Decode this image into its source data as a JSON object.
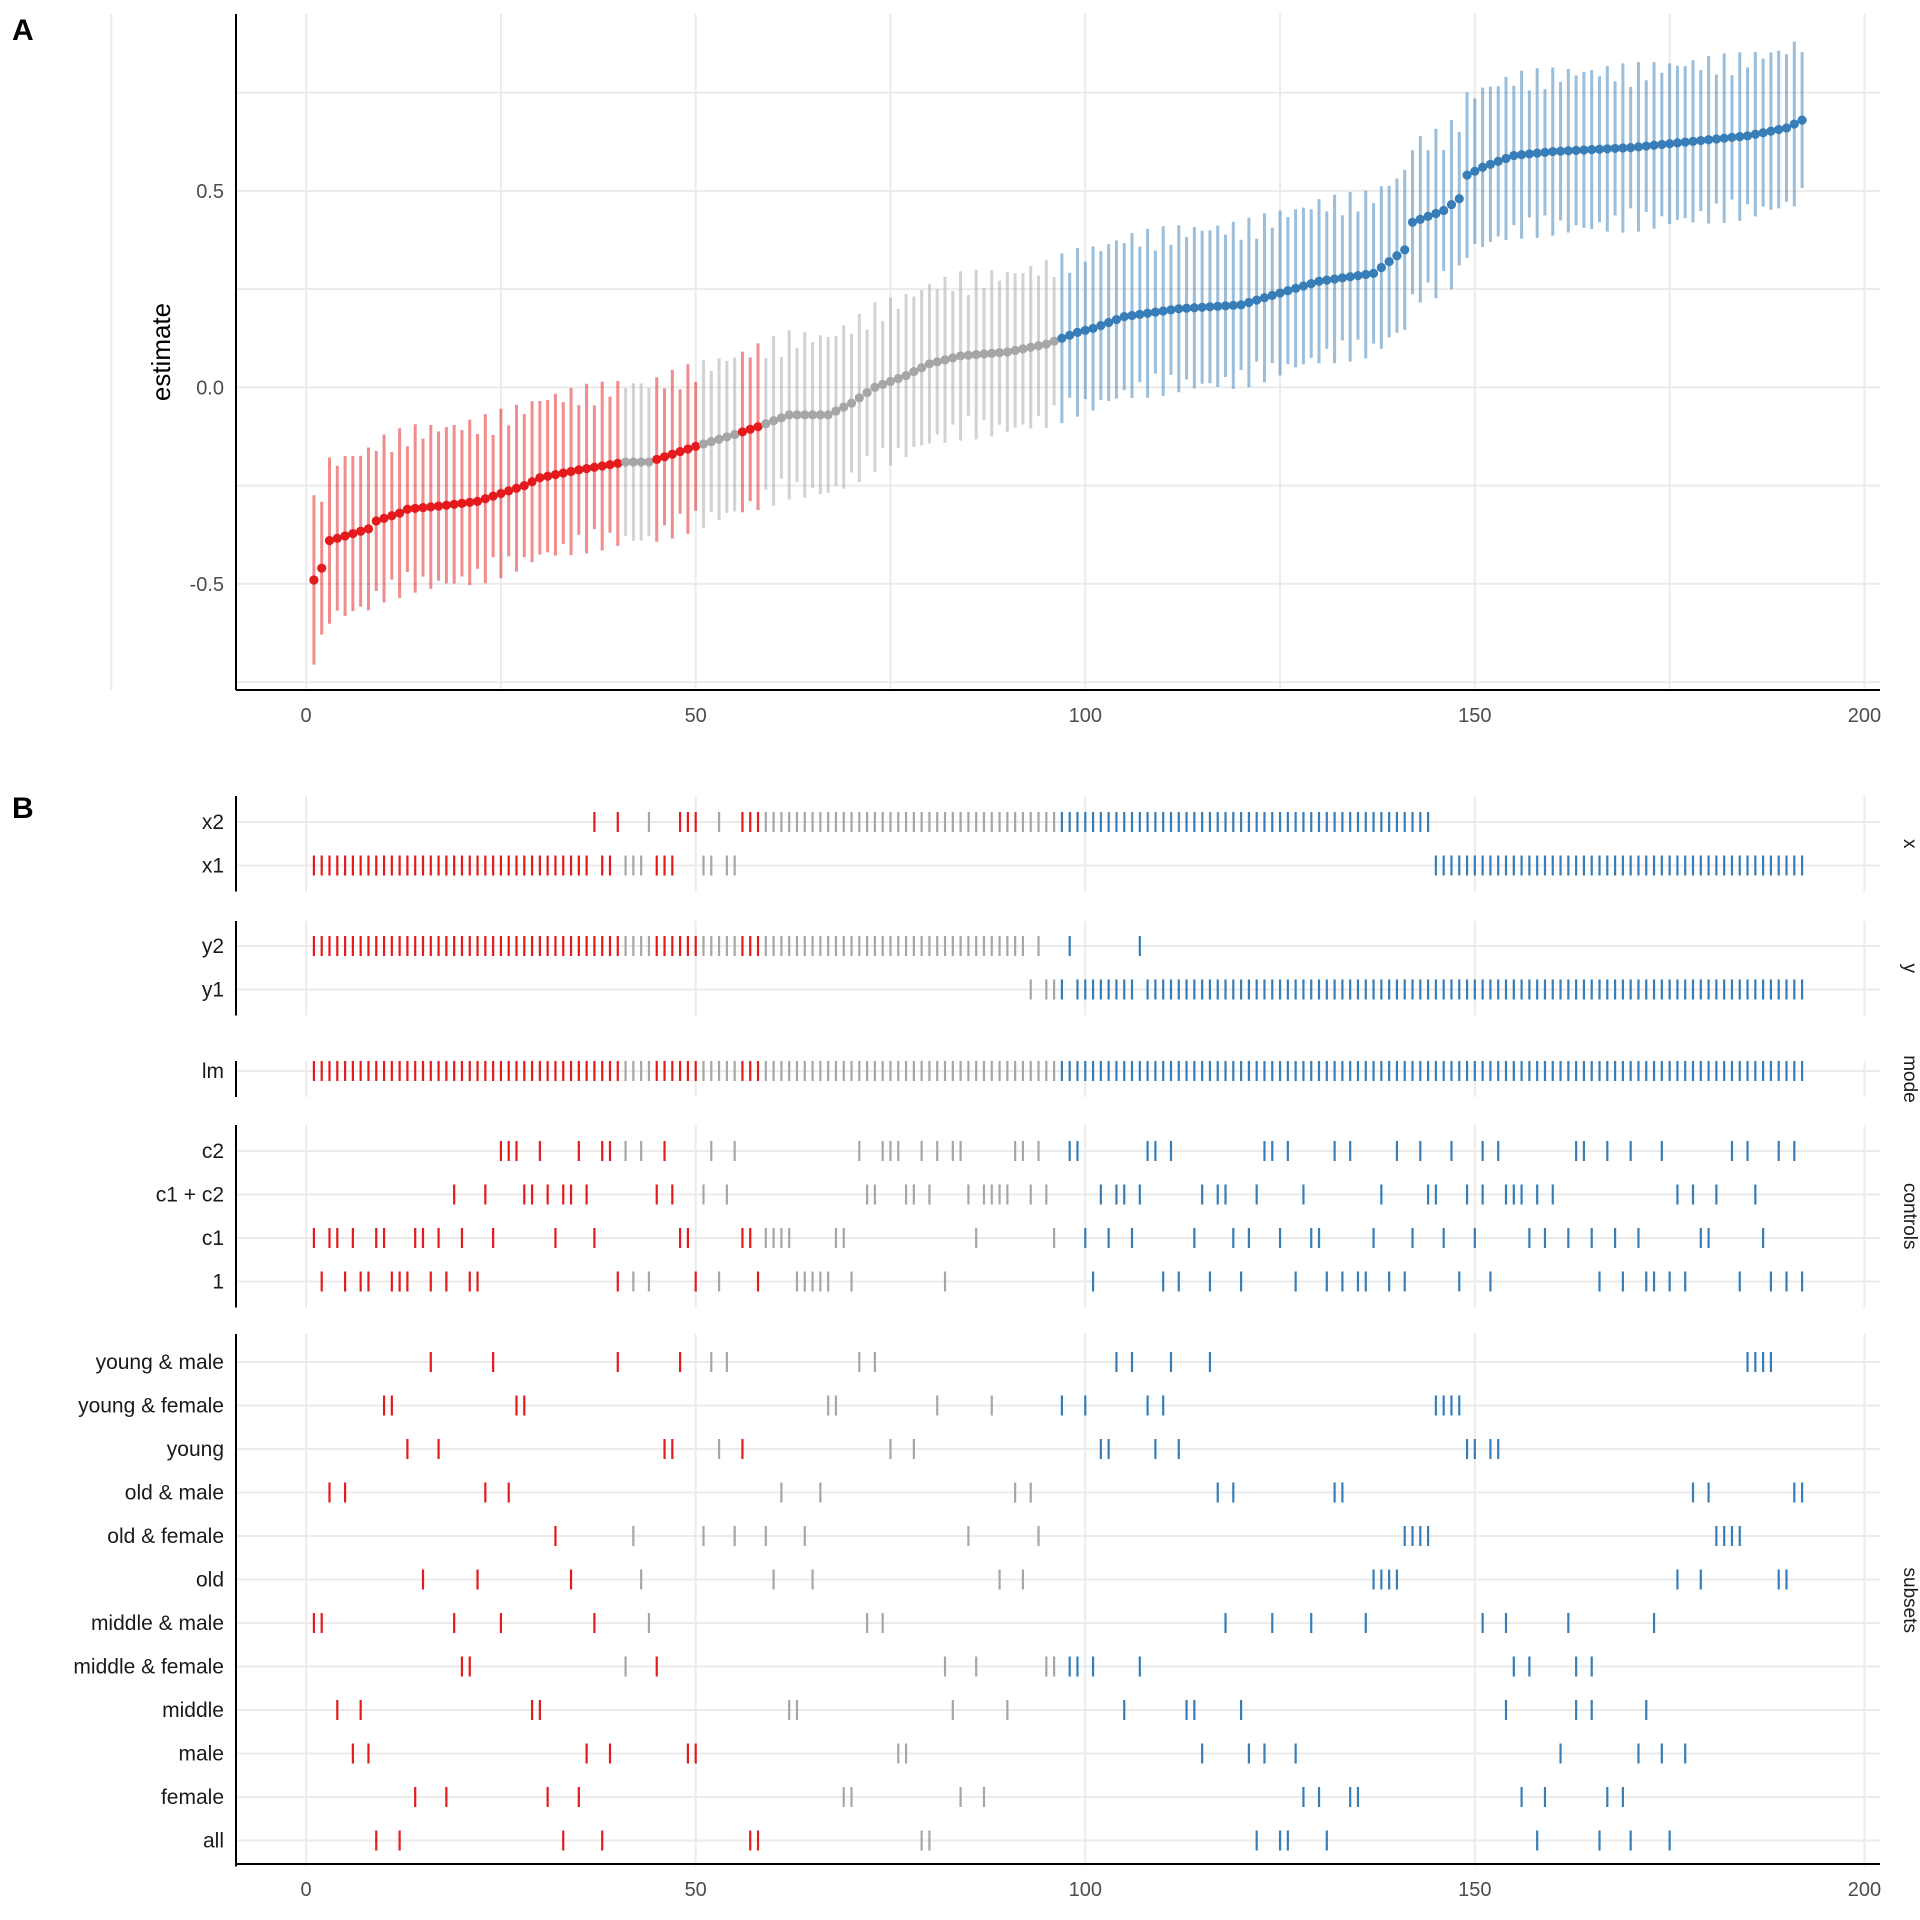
{
  "panels": {
    "a_label": "A",
    "b_label": "B"
  },
  "colors": {
    "negative": "#e41a1c",
    "neutral": "#a6a6a6",
    "positive": "#377eb8",
    "grid": "#ebebeb",
    "axis": "#000000"
  },
  "chart_data": [
    {
      "type": "scatter",
      "title": "",
      "xlabel": "",
      "ylabel": "estimate",
      "xlim": [
        -9,
        202
      ],
      "ylim": [
        -0.77,
        0.95
      ],
      "xticks": [
        0,
        50,
        100,
        150,
        200
      ],
      "xtick_labels": [
        "0",
        "50",
        "100",
        "150",
        "200"
      ],
      "yticks": [
        -0.5,
        0.0,
        0.5
      ],
      "ytick_labels": [
        "-0.5",
        "0.0",
        "0.5"
      ],
      "grid": true,
      "categories_by_color": [
        "negative",
        "neutral",
        "positive"
      ],
      "segments": [
        {
          "from": 1,
          "to": 40,
          "color": "negative"
        },
        {
          "from": 41,
          "to": 44,
          "color": "neutral"
        },
        {
          "from": 45,
          "to": 50,
          "color": "negative"
        },
        {
          "from": 51,
          "to": 55,
          "color": "neutral"
        },
        {
          "from": 56,
          "to": 58,
          "color": "negative"
        },
        {
          "from": 59,
          "to": 96,
          "color": "neutral"
        },
        {
          "from": 97,
          "to": 192,
          "color": "positive"
        }
      ],
      "estimate_keypoints": [
        [
          1,
          -0.49
        ],
        [
          2,
          -0.46
        ],
        [
          3,
          -0.39
        ],
        [
          8,
          -0.36
        ],
        [
          9,
          -0.34
        ],
        [
          12,
          -0.32
        ],
        [
          13,
          -0.31
        ],
        [
          18,
          -0.3
        ],
        [
          22,
          -0.29
        ],
        [
          28,
          -0.25
        ],
        [
          30,
          -0.23
        ],
        [
          35,
          -0.21
        ],
        [
          38,
          -0.2
        ],
        [
          41,
          -0.19
        ],
        [
          44,
          -0.19
        ],
        [
          50,
          -0.15
        ],
        [
          55,
          -0.12
        ],
        [
          58,
          -0.1
        ],
        [
          62,
          -0.07
        ],
        [
          67,
          -0.07
        ],
        [
          70,
          -0.04
        ],
        [
          73,
          0.0
        ],
        [
          77,
          0.03
        ],
        [
          80,
          0.06
        ],
        [
          84,
          0.08
        ],
        [
          90,
          0.09
        ],
        [
          95,
          0.11
        ],
        [
          99,
          0.14
        ],
        [
          101,
          0.15
        ],
        [
          105,
          0.18
        ],
        [
          112,
          0.2
        ],
        [
          120,
          0.21
        ],
        [
          125,
          0.24
        ],
        [
          130,
          0.27
        ],
        [
          137,
          0.29
        ],
        [
          141,
          0.35
        ],
        [
          142,
          0.42
        ],
        [
          146,
          0.45
        ],
        [
          148,
          0.48
        ],
        [
          149,
          0.54
        ],
        [
          151,
          0.56
        ],
        [
          155,
          0.59
        ],
        [
          160,
          0.6
        ],
        [
          170,
          0.61
        ],
        [
          175,
          0.62
        ],
        [
          180,
          0.63
        ],
        [
          185,
          0.64
        ],
        [
          190,
          0.66
        ],
        [
          192,
          0.68
        ]
      ],
      "ci_halfwidth": 0.18
    },
    {
      "type": "table",
      "title": "",
      "xlim": [
        -9,
        202
      ],
      "xticks": [
        0,
        50,
        100,
        150,
        200
      ],
      "xtick_labels": [
        "0",
        "50",
        "100",
        "150",
        "200"
      ],
      "groups": [
        {
          "strip": "x",
          "rows": [
            {
              "label": "x2",
              "ticks": [
                37,
                40,
                44,
                48,
                49,
                50,
                53,
                56,
                57,
                58,
                "59-144"
              ]
            },
            {
              "label": "x1",
              "ticks": [
                "1-36",
                38,
                39,
                41,
                42,
                43,
                45,
                46,
                47,
                51,
                52,
                54,
                55,
                "145-192"
              ]
            }
          ]
        },
        {
          "strip": "y",
          "rows": [
            {
              "label": "y2",
              "ticks": [
                "1-92",
                94,
                98,
                107
              ]
            },
            {
              "label": "y1",
              "ticks": [
                93,
                95,
                96,
                97,
                "99-106",
                "108-192"
              ]
            }
          ]
        },
        {
          "strip": "mode",
          "rows": [
            {
              "label": "lm",
              "ticks": [
                "1-192"
              ]
            }
          ]
        },
        {
          "strip": "controls",
          "rows": [
            {
              "label": "c2",
              "ticks": [
                25,
                26,
                27,
                30,
                35,
                38,
                39,
                41,
                43,
                46,
                52,
                55,
                71,
                74,
                75,
                76,
                79,
                81,
                83,
                84,
                91,
                92,
                94,
                98,
                99,
                108,
                109,
                111,
                123,
                124,
                126,
                132,
                134,
                140,
                143,
                147,
                151,
                153,
                163,
                164,
                167,
                170,
                174,
                183,
                185,
                189,
                191
              ]
            },
            {
              "label": "c1 + c2",
              "ticks": [
                19,
                23,
                28,
                29,
                31,
                33,
                34,
                36,
                45,
                47,
                51,
                54,
                72,
                73,
                77,
                78,
                80,
                85,
                87,
                88,
                89,
                90,
                93,
                95,
                102,
                104,
                105,
                107,
                115,
                117,
                118,
                122,
                128,
                138,
                144,
                145,
                149,
                151,
                154,
                155,
                156,
                158,
                160,
                176,
                178,
                181,
                186
              ]
            },
            {
              "label": "c1",
              "ticks": [
                1,
                3,
                4,
                6,
                9,
                10,
                14,
                15,
                17,
                20,
                24,
                32,
                37,
                48,
                49,
                56,
                57,
                59,
                60,
                61,
                62,
                68,
                69,
                86,
                96,
                100,
                103,
                106,
                114,
                119,
                121,
                125,
                129,
                130,
                137,
                142,
                146,
                150,
                157,
                159,
                162,
                165,
                168,
                171,
                179,
                180,
                187
              ]
            },
            {
              "label": "1",
              "ticks": [
                2,
                5,
                7,
                8,
                11,
                12,
                13,
                16,
                18,
                21,
                22,
                40,
                42,
                44,
                50,
                53,
                58,
                63,
                64,
                65,
                66,
                67,
                70,
                82,
                101,
                110,
                112,
                116,
                120,
                127,
                131,
                133,
                135,
                136,
                139,
                141,
                148,
                152,
                166,
                169,
                172,
                173,
                175,
                177,
                184,
                188,
                190,
                192
              ]
            }
          ]
        },
        {
          "strip": "subsets",
          "rows": [
            {
              "label": "young & male",
              "ticks": [
                16,
                24,
                40,
                48,
                52,
                54,
                71,
                73,
                104,
                106,
                111,
                116,
                185,
                186,
                187,
                188
              ]
            },
            {
              "label": "young & female",
              "ticks": [
                10,
                11,
                27,
                28,
                67,
                68,
                81,
                88,
                97,
                100,
                108,
                110,
                145,
                146,
                147,
                148
              ]
            },
            {
              "label": "young",
              "ticks": [
                13,
                17,
                46,
                47,
                53,
                56,
                75,
                78,
                102,
                103,
                109,
                112,
                149,
                150,
                152,
                153
              ]
            },
            {
              "label": "old & male",
              "ticks": [
                3,
                5,
                23,
                26,
                61,
                66,
                91,
                93,
                117,
                119,
                132,
                133,
                178,
                180,
                191,
                192
              ]
            },
            {
              "label": "old & female",
              "ticks": [
                32,
                42,
                51,
                55,
                59,
                64,
                85,
                94,
                141,
                142,
                143,
                144,
                181,
                182,
                183,
                184
              ]
            },
            {
              "label": "old",
              "ticks": [
                15,
                22,
                34,
                43,
                60,
                65,
                89,
                92,
                137,
                138,
                139,
                140,
                176,
                179,
                189,
                190
              ]
            },
            {
              "label": "middle & male",
              "ticks": [
                1,
                2,
                19,
                25,
                37,
                44,
                72,
                74,
                118,
                124,
                129,
                136,
                151,
                154,
                162,
                173
              ]
            },
            {
              "label": "middle & female",
              "ticks": [
                20,
                21,
                41,
                45,
                82,
                86,
                95,
                96,
                98,
                99,
                101,
                107,
                155,
                157,
                163,
                165
              ]
            },
            {
              "label": "middle",
              "ticks": [
                4,
                7,
                29,
                30,
                62,
                63,
                83,
                90,
                105,
                113,
                114,
                120,
                154,
                163,
                165,
                172
              ]
            },
            {
              "label": "male",
              "ticks": [
                6,
                8,
                36,
                39,
                49,
                50,
                76,
                77,
                115,
                121,
                123,
                127,
                161,
                171,
                174,
                177
              ]
            },
            {
              "label": "female",
              "ticks": [
                14,
                18,
                31,
                35,
                69,
                70,
                84,
                87,
                128,
                130,
                134,
                135,
                156,
                159,
                167,
                169
              ]
            },
            {
              "label": "all",
              "ticks": [
                9,
                12,
                33,
                38,
                57,
                58,
                79,
                80,
                122,
                125,
                126,
                131,
                158,
                166,
                170,
                175
              ]
            }
          ]
        }
      ]
    }
  ]
}
